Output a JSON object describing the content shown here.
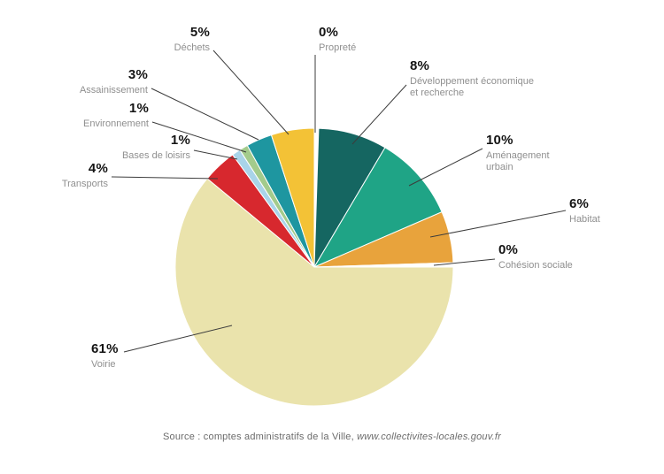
{
  "chart_data": {
    "type": "pie",
    "title": "",
    "legend_position": "callout-labels",
    "unit": "%",
    "segments": [
      {
        "label": "Propreté",
        "pct_label": "0%",
        "value": 0,
        "color": "#ffffff"
      },
      {
        "label": "Développement économique et recherche",
        "pct_label": "8%",
        "value": 8,
        "color": "#156661"
      },
      {
        "label": "Aménagement urbain",
        "pct_label": "10%",
        "value": 10,
        "color": "#1fa486"
      },
      {
        "label": "Habitat",
        "pct_label": "6%",
        "value": 6,
        "color": "#e8a33c"
      },
      {
        "label": "Cohésion sociale",
        "pct_label": "0%",
        "value": 0,
        "color": "#ffffff"
      },
      {
        "label": "Voirie",
        "pct_label": "61%",
        "value": 61,
        "color": "#eae3ac"
      },
      {
        "label": "Transports",
        "pct_label": "4%",
        "value": 4,
        "color": "#d7282e"
      },
      {
        "label": "Bases de loisirs",
        "pct_label": "1%",
        "value": 1,
        "color": "#a9d4e9"
      },
      {
        "label": "Environnement",
        "pct_label": "1%",
        "value": 1,
        "color": "#a3cb8c"
      },
      {
        "label": "Assainissement",
        "pct_label": "3%",
        "value": 3,
        "color": "#1e96a0"
      },
      {
        "label": "Déchets",
        "pct_label": "5%",
        "value": 5,
        "color": "#f3c236"
      }
    ],
    "source_prefix": "Source : comptes administratifs de la Ville, ",
    "source_link": "www.collectivites-locales.gouv.fr",
    "colors": {
      "leader_line": "#3c3c3c",
      "pct_text": "#141414",
      "category_text": "#8f8f8f",
      "background": "#ffffff"
    }
  }
}
